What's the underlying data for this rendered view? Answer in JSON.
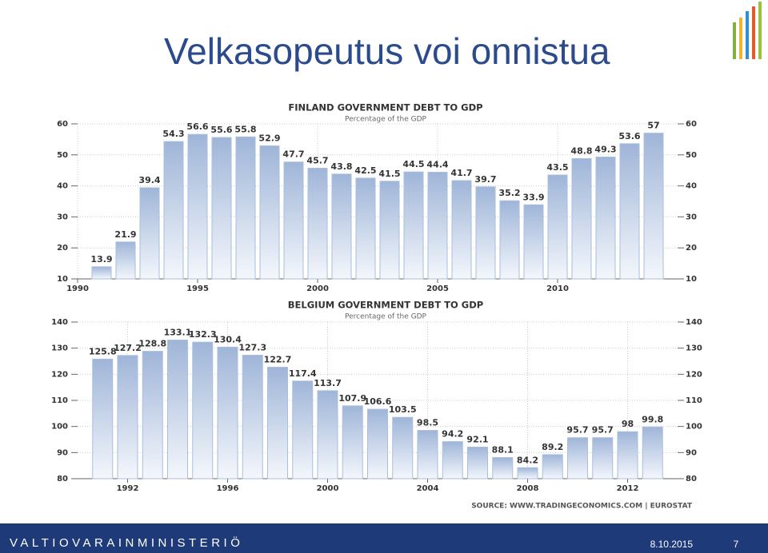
{
  "slide": {
    "title": "Velkasopeutus voi onnistua",
    "organization": "VALTIOVARAINMINISTERIÖ",
    "date": "8.10.2015",
    "page": 7
  },
  "chart_data": [
    {
      "type": "bar",
      "title": "FINLAND GOVERNMENT DEBT TO GDP",
      "subtitle": "Percentage of the GDP",
      "x": [
        1991,
        1992,
        1993,
        1994,
        1995,
        1996,
        1997,
        1998,
        1999,
        2000,
        2001,
        2002,
        2003,
        2004,
        2005,
        2006,
        2007,
        2008,
        2009,
        2010,
        2011,
        2012,
        2013,
        2014
      ],
      "values": [
        13.9,
        21.9,
        39.4,
        54.3,
        56.6,
        55.6,
        55.8,
        52.9,
        47.7,
        45.7,
        43.8,
        42.5,
        41.5,
        44.5,
        44.4,
        41.7,
        39.7,
        35.2,
        33.9,
        43.5,
        48.8,
        49.3,
        53.6,
        57
      ],
      "xlim": [
        1990,
        2015
      ],
      "xticks": [
        1990,
        1995,
        2000,
        2005,
        2010
      ],
      "ylim": [
        10,
        60
      ],
      "yticks": [
        10,
        20,
        30,
        40,
        50,
        60
      ],
      "grid": true,
      "color": "#aabfdd"
    },
    {
      "type": "bar",
      "title": "BELGIUM GOVERNMENT DEBT TO GDP",
      "subtitle": "Percentage of the GDP",
      "x": [
        1991,
        1992,
        1993,
        1994,
        1995,
        1996,
        1997,
        1998,
        1999,
        2000,
        2001,
        2002,
        2003,
        2004,
        2005,
        2006,
        2007,
        2008,
        2009,
        2010,
        2011,
        2012,
        2013
      ],
      "values": [
        125.8,
        127.2,
        128.8,
        133.1,
        132.3,
        130.4,
        127.3,
        122.7,
        117.4,
        113.7,
        107.9,
        106.6,
        103.5,
        98.5,
        94.2,
        92.1,
        88.1,
        84.2,
        89.2,
        95.7,
        95.7,
        98,
        99.8
      ],
      "xlim": [
        1990,
        2014
      ],
      "xticks": [
        1992,
        1996,
        2000,
        2004,
        2008,
        2012
      ],
      "ylim": [
        80,
        140
      ],
      "yticks": [
        80,
        90,
        100,
        110,
        120,
        130,
        140
      ],
      "grid": true,
      "color": "#aabfdd",
      "source": "SOURCE: WWW.TRADINGECONOMICS.COM | EUROSTAT"
    }
  ]
}
